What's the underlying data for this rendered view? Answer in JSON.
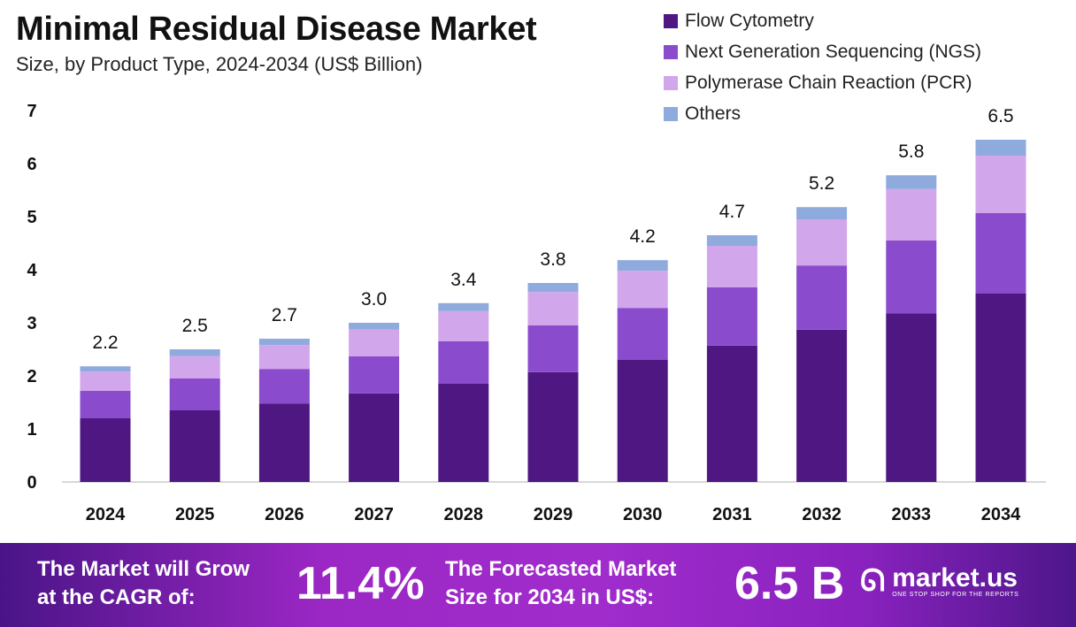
{
  "chart_data": {
    "type": "bar",
    "stacked": true,
    "title": "Minimal Residual Disease Market",
    "subtitle": "Size, by Product Type, 2024-2034 (US$ Billion)",
    "xlabel": "",
    "ylabel": "",
    "ylim": [
      0,
      7
    ],
    "yticks": [
      "0",
      "1",
      "2",
      "3",
      "4",
      "5",
      "6",
      "7"
    ],
    "categories": [
      "2024",
      "2025",
      "2026",
      "2027",
      "2028",
      "2029",
      "2030",
      "2031",
      "2032",
      "2033",
      "2034"
    ],
    "totals": [
      "2.2",
      "2.5",
      "2.7",
      "3.0",
      "3.4",
      "3.8",
      "4.2",
      "4.7",
      "5.2",
      "5.8",
      "6.5"
    ],
    "legend_position": "top-right",
    "series": [
      {
        "name": "Flow Cytometry",
        "color": "#4e1782",
        "values": [
          1.2,
          1.35,
          1.48,
          1.67,
          1.85,
          2.07,
          2.3,
          2.57,
          2.87,
          3.18,
          3.55
        ]
      },
      {
        "name": "Next Generation Sequencing (NGS)",
        "color": "#8a4ccc",
        "values": [
          0.52,
          0.6,
          0.65,
          0.7,
          0.8,
          0.88,
          0.98,
          1.1,
          1.21,
          1.37,
          1.52
        ]
      },
      {
        "name": "Polymerase Chain Reaction (PCR)",
        "color": "#d2a6ea",
        "values": [
          0.36,
          0.42,
          0.45,
          0.5,
          0.57,
          0.63,
          0.7,
          0.78,
          0.87,
          0.97,
          1.08
        ]
      },
      {
        "name": "Others",
        "color": "#8faadc",
        "values": [
          0.1,
          0.13,
          0.12,
          0.13,
          0.15,
          0.17,
          0.2,
          0.2,
          0.23,
          0.26,
          0.3
        ]
      }
    ]
  },
  "footer": {
    "cagr_text_1": "The Market will Grow",
    "cagr_text_2": "at the CAGR of:",
    "cagr_value": "11.4%",
    "forecast_text_1": "The Forecasted Market",
    "forecast_text_2": "Size for 2034 in US$:",
    "forecast_value": "6.5 B",
    "logo_name": "market.us",
    "logo_tagline": "ONE STOP SHOP FOR THE REPORTS"
  }
}
